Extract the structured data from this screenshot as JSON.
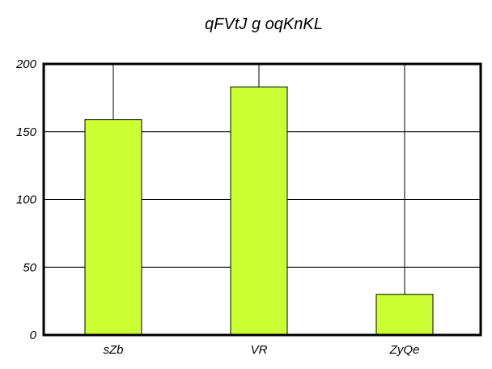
{
  "chart_data": {
    "type": "bar",
    "title": "qFVtJ g oqKnKL",
    "xlabel": "",
    "ylabel": "",
    "categories": [
      "sZb",
      "VR",
      "ZyQe"
    ],
    "values": [
      159,
      183,
      30
    ],
    "ylim": [
      0,
      200
    ],
    "yticks": [
      0,
      50,
      100,
      150,
      200
    ],
    "grid": true,
    "colors": {
      "bar_fill": "#ccff33",
      "bar_stroke": "#000000",
      "grid": "#000000",
      "frame": "#000000"
    }
  }
}
